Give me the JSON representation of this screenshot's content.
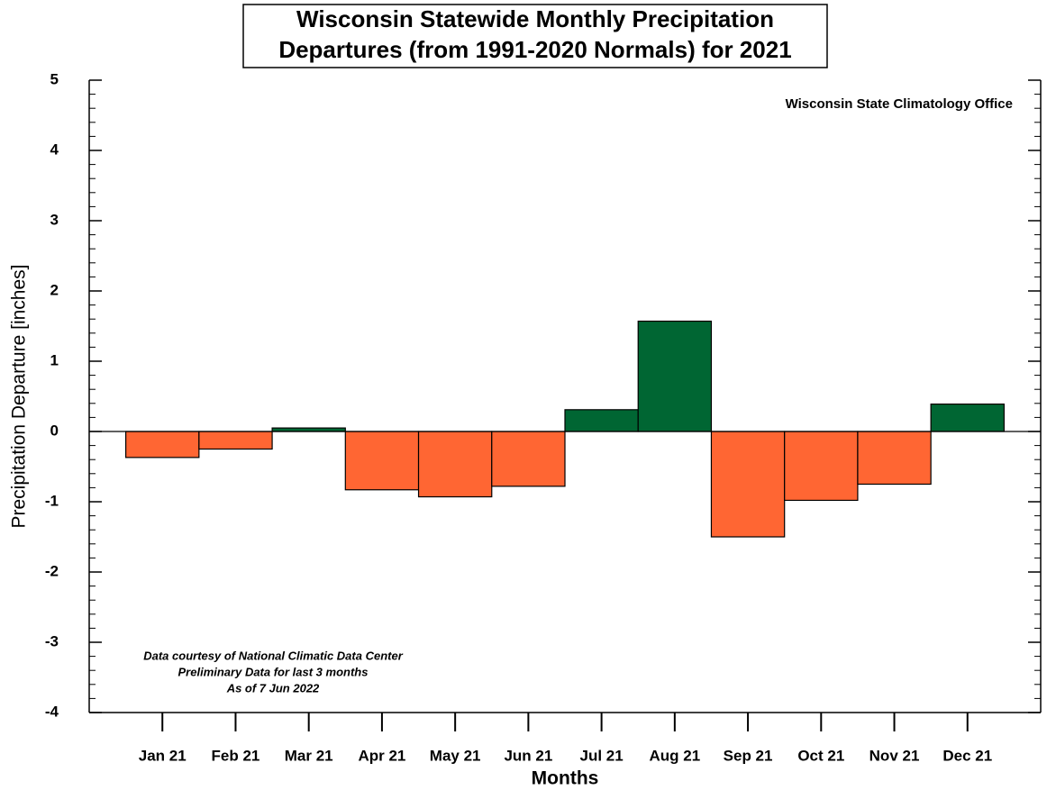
{
  "chart_data": {
    "type": "bar",
    "title": [
      "Wisconsin Statewide Monthly Precipitation",
      "Departures (from 1991-2020 Normals) for 2021"
    ],
    "source": "Wisconsin State Climatology Office",
    "notes": [
      "Data courtesy of National Climatic Data Center",
      "Preliminary Data for last 3 months",
      "As of 7 Jun 2022"
    ],
    "x_label": "Months",
    "y_label": "Precipitation Departure [inches]",
    "categories": [
      "Jan 21",
      "Feb 21",
      "Mar 21",
      "Apr 21",
      "May 21",
      "Jun 21",
      "Jul 21",
      "Aug 21",
      "Sep 21",
      "Oct 21",
      "Nov 21",
      "Dec 21"
    ],
    "values": [
      -0.37,
      -0.25,
      0.05,
      -0.83,
      -0.93,
      -0.78,
      0.31,
      1.57,
      -1.5,
      -0.98,
      -0.75,
      0.39
    ],
    "positive_color": "#006633",
    "negative_color": "#ff6633",
    "ylim": [
      -4,
      5
    ],
    "yticks": [
      -4,
      -3,
      -2,
      -1,
      0,
      1,
      2,
      3,
      4,
      5
    ]
  }
}
